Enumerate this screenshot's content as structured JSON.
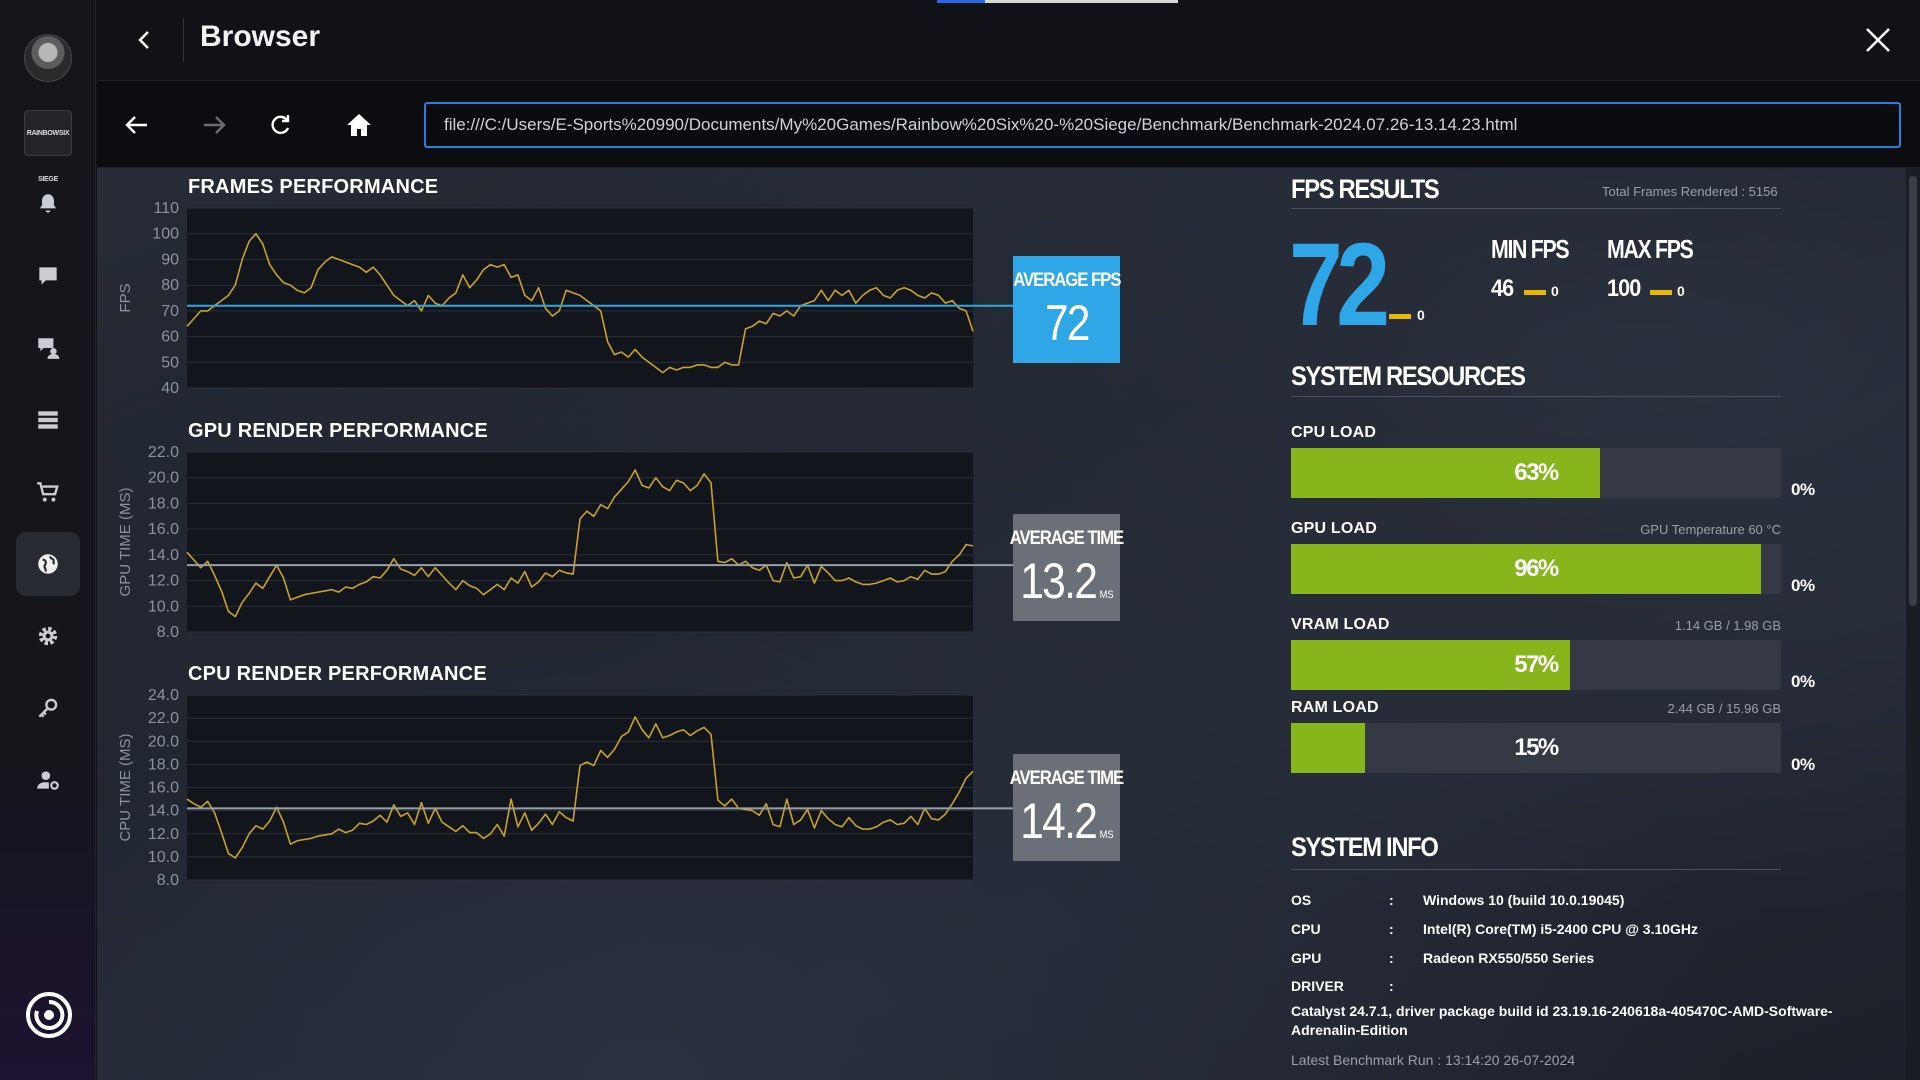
{
  "window": {
    "title": "Browser"
  },
  "sidebar": {
    "game_tile_label": "RAINBOWSIX SIEGE",
    "items": [
      {
        "icon": "bell-icon"
      },
      {
        "icon": "chat-icon"
      },
      {
        "icon": "friends-chat-icon"
      },
      {
        "icon": "library-icon"
      },
      {
        "icon": "cart-icon"
      },
      {
        "icon": "globe-icon"
      },
      {
        "icon": "gear-icon"
      },
      {
        "icon": "key-icon"
      },
      {
        "icon": "user-settings-icon"
      }
    ],
    "active_item": "globe-icon"
  },
  "toolbar": {
    "url": "file:///C:/Users/E-Sports%20990/Documents/My%20Games/Rainbow%20Six%20-%20Siege/Benchmark/Benchmark-2024.07.26-13.14.23.html"
  },
  "benchmark": {
    "frames": {
      "title": "FRAMES PERFORMANCE",
      "avg_label": "AVERAGE FPS",
      "avg_value": "72",
      "avg_unit": ""
    },
    "gpu": {
      "title": "GPU RENDER PERFORMANCE",
      "avg_label": "AVERAGE TIME",
      "avg_value": "13.2",
      "avg_unit": "MS"
    },
    "cpu": {
      "title": "CPU RENDER PERFORMANCE",
      "avg_label": "AVERAGE TIME",
      "avg_value": "14.2",
      "avg_unit": "MS"
    }
  },
  "chart_data": [
    {
      "type": "line",
      "title": "FRAMES PERFORMANCE",
      "ylabel": "FPS",
      "ylim": [
        40,
        110
      ],
      "yticks": [
        "110",
        "100",
        "90",
        "80",
        "70",
        "60",
        "50",
        "40"
      ],
      "reference_line": 72,
      "reference_color": "#2fa7e6",
      "line_color": "#c9a227",
      "series": [
        {
          "values": [
            64,
            67,
            70,
            70,
            72,
            74,
            76,
            80,
            90,
            97,
            100,
            96,
            88,
            84,
            81,
            80,
            78,
            77,
            79,
            86,
            89,
            91,
            90,
            89,
            88,
            87,
            85,
            87,
            84,
            80,
            76,
            74,
            72,
            74,
            70,
            76,
            73,
            72,
            75,
            77,
            84,
            79,
            82,
            86,
            88,
            87,
            88,
            83,
            84,
            76,
            74,
            79,
            71,
            68,
            70,
            78,
            77,
            76,
            74,
            72,
            70,
            58,
            53,
            54,
            52,
            55,
            52,
            50,
            48,
            46,
            48,
            47,
            48,
            48,
            49,
            49,
            48,
            48,
            50,
            49,
            49,
            63,
            64,
            66,
            65,
            69,
            68,
            70,
            68,
            72,
            73,
            74,
            78,
            74,
            78,
            76,
            78,
            73,
            76,
            78,
            79,
            76,
            75,
            78,
            79,
            78,
            76,
            75,
            77,
            76,
            73,
            74,
            71,
            70,
            62
          ]
        }
      ]
    },
    {
      "type": "line",
      "title": "GPU RENDER PERFORMANCE",
      "ylabel": "GPU TIME (MS)",
      "ylim": [
        8,
        22
      ],
      "yticks": [
        "22.0",
        "20.0",
        "18.0",
        "16.0",
        "14.0",
        "12.0",
        "10.0",
        "8.0"
      ],
      "reference_line": 13.2,
      "reference_color": "#9aa0a8",
      "line_color": "#c9a227",
      "series": [
        {
          "values": [
            14.2,
            13.6,
            13.0,
            13.5,
            12.4,
            11.2,
            9.6,
            9.2,
            10.3,
            11.0,
            11.8,
            11.4,
            12.3,
            13.2,
            12.2,
            10.5,
            10.7,
            10.9,
            11.0,
            11.1,
            11.2,
            11.3,
            11.1,
            11.5,
            11.4,
            11.7,
            11.9,
            12.3,
            12.2,
            12.8,
            13.7,
            12.9,
            12.7,
            12.4,
            13.0,
            12.3,
            13.0,
            12.4,
            11.8,
            11.3,
            12.0,
            11.6,
            11.4,
            10.9,
            11.3,
            11.7,
            11.3,
            12.2,
            11.8,
            12.7,
            11.5,
            11.9,
            12.6,
            12.3,
            12.8,
            12.6,
            12.5,
            16.8,
            17.4,
            17.0,
            17.9,
            17.6,
            18.5,
            19.1,
            19.7,
            20.6,
            19.4,
            19.2,
            20.0,
            19.3,
            19.0,
            19.8,
            19.6,
            19.0,
            19.4,
            20.3,
            19.6,
            13.5,
            13.4,
            13.7,
            13.2,
            13.5,
            13.0,
            12.8,
            13.2,
            12.0,
            11.9,
            13.4,
            12.2,
            12.3,
            13.2,
            11.8,
            13.1,
            12.6,
            12.0,
            12.0,
            12.2,
            11.9,
            11.7,
            11.7,
            11.8,
            12.0,
            12.2,
            11.9,
            12.0,
            12.3,
            12.1,
            12.8,
            12.5,
            12.5,
            12.7,
            13.5,
            14.0,
            14.8,
            14.7
          ]
        }
      ]
    },
    {
      "type": "line",
      "title": "CPU RENDER PERFORMANCE",
      "ylabel": "CPU TIME (MS)",
      "ylim": [
        8,
        24
      ],
      "yticks": [
        "24.0",
        "22.0",
        "20.0",
        "18.0",
        "16.0",
        "14.0",
        "12.0",
        "10.0",
        "8.0"
      ],
      "reference_line": 14.2,
      "reference_color": "#9aa0a8",
      "line_color": "#c9a227",
      "series": [
        {
          "values": [
            15.0,
            14.6,
            14.3,
            14.8,
            13.8,
            12.1,
            10.3,
            9.9,
            10.8,
            12.0,
            12.7,
            12.4,
            13.1,
            14.3,
            13.0,
            11.1,
            11.4,
            11.5,
            11.6,
            11.8,
            11.9,
            12.0,
            12.4,
            12.1,
            12.3,
            12.9,
            12.8,
            13.1,
            13.6,
            13.0,
            14.5,
            13.5,
            13.8,
            12.8,
            14.7,
            12.9,
            14.2,
            13.0,
            12.6,
            12.2,
            12.7,
            12.1,
            12.1,
            11.6,
            12.0,
            12.8,
            11.8,
            15.0,
            12.6,
            13.8,
            12.3,
            12.9,
            13.7,
            12.8,
            13.9,
            13.4,
            13.1,
            17.9,
            18.2,
            17.9,
            19.2,
            18.6,
            19.3,
            20.4,
            20.8,
            22.1,
            21.0,
            20.3,
            21.5,
            20.3,
            20.5,
            20.8,
            21.0,
            20.5,
            20.9,
            21.2,
            20.6,
            14.9,
            14.4,
            15.0,
            14.2,
            14.1,
            14.0,
            13.6,
            14.6,
            12.8,
            12.6,
            15.0,
            12.8,
            13.2,
            14.1,
            12.5,
            14.0,
            13.3,
            12.8,
            12.6,
            13.4,
            12.7,
            12.4,
            12.4,
            12.6,
            13.0,
            13.2,
            12.8,
            12.9,
            13.5,
            12.8,
            14.2,
            13.3,
            13.2,
            13.7,
            14.6,
            15.6,
            16.8,
            17.4
          ]
        }
      ]
    }
  ],
  "fps_results": {
    "heading": "FPS RESULTS",
    "total_frames": "Total Frames Rendered : 5156",
    "avg_fps": "72",
    "avg_delta": "0",
    "min_label": "MIN FPS",
    "min_value": "46",
    "min_delta": "0",
    "max_label": "MAX FPS",
    "max_value": "100",
    "max_delta": "0",
    "delta_color": "#e8b800",
    "fps_color": "#2fa7e6"
  },
  "system_resources": {
    "heading": "SYSTEM RESOURCES",
    "bar_color": "#86b61c",
    "items": [
      {
        "label": "CPU LOAD",
        "note": "",
        "percent_text": "63%",
        "fraction": 0.63,
        "delta": "0%"
      },
      {
        "label": "GPU LOAD",
        "note": "GPU Temperature 60 °C",
        "percent_text": "96%",
        "fraction": 0.96,
        "delta": "0%"
      },
      {
        "label": "VRAM LOAD",
        "note": "1.14 GB / 1.98 GB",
        "percent_text": "57%",
        "fraction": 0.57,
        "delta": "0%"
      },
      {
        "label": "RAM LOAD",
        "note": "2.44 GB / 15.96 GB",
        "percent_text": "15%",
        "fraction": 0.15,
        "delta": "0%"
      }
    ]
  },
  "system_info": {
    "heading": "SYSTEM INFO",
    "rows": [
      {
        "key": "OS",
        "colon": ":",
        "value": "Windows 10 (build 10.0.19045)"
      },
      {
        "key": "CPU",
        "colon": ":",
        "value": "Intel(R) Core(TM) i5-2400 CPU @ 3.10GHz"
      },
      {
        "key": "GPU",
        "colon": ":",
        "value": "Radeon RX550/550 Series"
      },
      {
        "key": "DRIVER",
        "colon": ":",
        "value": ""
      }
    ],
    "driver": "Catalyst 24.7.1, driver package build id 23.19.16-240618a-405470C-AMD-Software-Adrenalin-Edition",
    "latest_run": "Latest Benchmark Run : 13:14:20 26-07-2024"
  }
}
